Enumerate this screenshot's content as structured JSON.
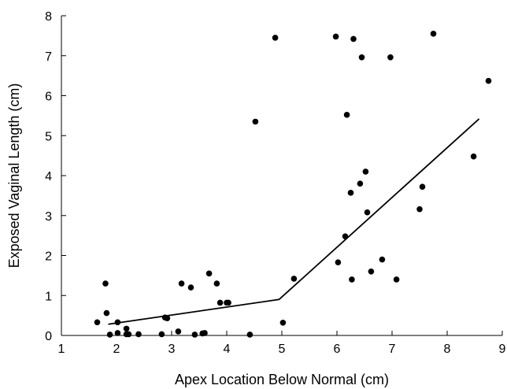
{
  "chart_data": {
    "type": "scatter",
    "title": "",
    "xlabel": "Apex Location Below Normal (cm)",
    "ylabel": "Exposed Vaginal Length (cm)",
    "xlim": [
      1,
      9
    ],
    "ylim": [
      0,
      8
    ],
    "xticks": [
      1,
      2,
      3,
      4,
      5,
      6,
      7,
      8,
      9
    ],
    "yticks": [
      0,
      1,
      2,
      3,
      4,
      5,
      6,
      7,
      8
    ],
    "grid": false,
    "series": [
      {
        "kind": "scatter",
        "color": "#000000",
        "points": [
          [
            1.65,
            0.33
          ],
          [
            1.8,
            1.3
          ],
          [
            1.82,
            0.56
          ],
          [
            1.88,
            0.02
          ],
          [
            2.02,
            0.33
          ],
          [
            2.02,
            0.06
          ],
          [
            2.18,
            0.17
          ],
          [
            2.18,
            0.03
          ],
          [
            2.22,
            0.03
          ],
          [
            2.4,
            0.03
          ],
          [
            2.82,
            0.03
          ],
          [
            2.88,
            0.45
          ],
          [
            2.92,
            0.43
          ],
          [
            3.12,
            0.1
          ],
          [
            3.18,
            1.3
          ],
          [
            3.35,
            1.2
          ],
          [
            3.42,
            0.02
          ],
          [
            3.56,
            0.05
          ],
          [
            3.6,
            0.06
          ],
          [
            3.68,
            1.55
          ],
          [
            3.82,
            1.3
          ],
          [
            3.88,
            0.82
          ],
          [
            4.0,
            0.82
          ],
          [
            4.03,
            0.82
          ],
          [
            4.42,
            0.02
          ],
          [
            4.52,
            5.35
          ],
          [
            4.88,
            7.45
          ],
          [
            5.02,
            0.32
          ],
          [
            5.22,
            1.42
          ],
          [
            5.98,
            7.48
          ],
          [
            6.02,
            1.83
          ],
          [
            6.15,
            2.48
          ],
          [
            6.18,
            5.52
          ],
          [
            6.25,
            3.57
          ],
          [
            6.27,
            1.4
          ],
          [
            6.3,
            7.42
          ],
          [
            6.42,
            3.8
          ],
          [
            6.45,
            6.96
          ],
          [
            6.52,
            4.1
          ],
          [
            6.55,
            3.08
          ],
          [
            6.62,
            1.6
          ],
          [
            6.82,
            1.9
          ],
          [
            6.97,
            6.96
          ],
          [
            7.08,
            1.4
          ],
          [
            7.5,
            3.16
          ],
          [
            7.55,
            3.72
          ],
          [
            7.75,
            7.55
          ],
          [
            8.48,
            4.48
          ],
          [
            8.75,
            6.37
          ]
        ]
      },
      {
        "kind": "line",
        "color": "#000000",
        "points": [
          [
            1.85,
            0.28
          ],
          [
            4.95,
            0.9
          ],
          [
            8.58,
            5.42
          ]
        ]
      }
    ]
  }
}
